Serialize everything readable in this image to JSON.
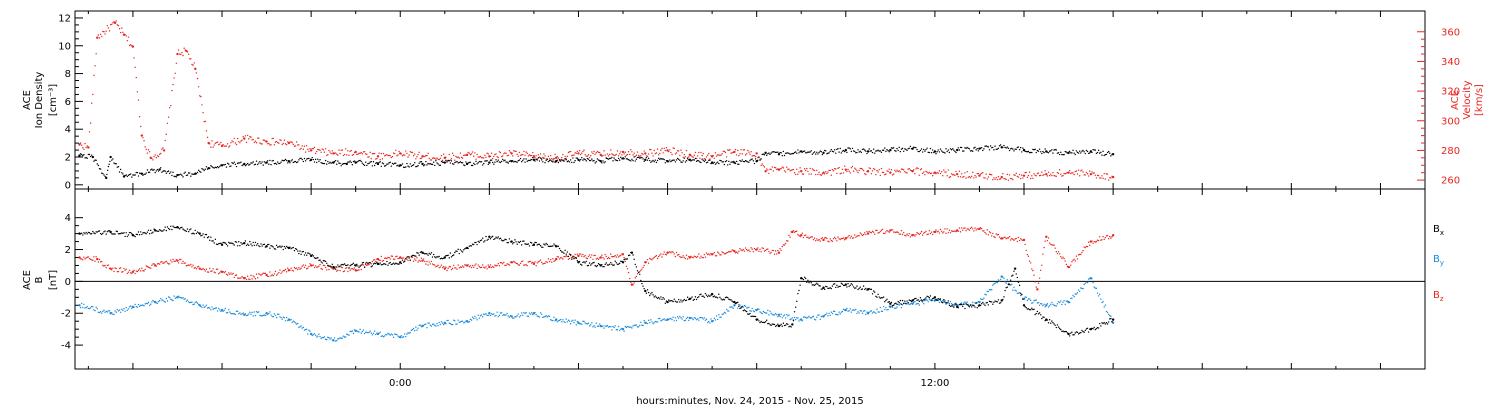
{
  "colors": {
    "black": "#000000",
    "red": "#e8261f",
    "blue": "#1a8ad9"
  },
  "xlabel": "hours:minutes, Nov. 24, 2015 - Nov. 25, 2015",
  "chart_data": [
    {
      "type": "scatter",
      "panel": "top",
      "ylabel_left": [
        "ACE",
        "Ion Density",
        "[cm⁻³]"
      ],
      "ylabel_right": [
        "ACE",
        "Velocity",
        "[km/s]"
      ],
      "xlim_hours": [
        -7.3,
        23.0
      ],
      "ylim_left": [
        -0.3,
        12.5
      ],
      "ylim_right": [
        254,
        374
      ],
      "x_ticks": [
        {
          "value": 0,
          "label": "0:00"
        },
        {
          "value": 12,
          "label": "12:00"
        }
      ],
      "y_ticks_left": [
        0,
        2,
        4,
        6,
        8,
        10,
        12
      ],
      "y_ticks_right": [
        260,
        280,
        300,
        320,
        340,
        360
      ],
      "series": [
        {
          "axis": "left",
          "color": "black",
          "yunit": "cm^-3",
          "x": [
            -7.2,
            -6.9,
            -6.6,
            -6.5,
            -6.2,
            -5.8,
            -5.4,
            -5.0,
            -4.6,
            -4.3,
            -4.0,
            -3.5,
            -3.0,
            -2.5,
            -2.0,
            -1.5,
            -1.2,
            -1.0,
            -0.5,
            0.0,
            0.5,
            1.0,
            1.5,
            2.0,
            2.5,
            3.0,
            3.5,
            4.0,
            4.5,
            5.0,
            5.5,
            6.0,
            6.5,
            7.0,
            7.5,
            8.0,
            8.2,
            8.5,
            9.0,
            9.5,
            10.0,
            10.5,
            11.0,
            11.5,
            12.0,
            12.5,
            13.0,
            13.5,
            14.0,
            14.5,
            15.0,
            15.5,
            16.0
          ],
          "y": [
            2.1,
            2.0,
            0.5,
            2.0,
            0.6,
            0.8,
            1.1,
            0.7,
            0.8,
            1.2,
            1.4,
            1.5,
            1.6,
            1.7,
            1.8,
            1.6,
            1.5,
            1.6,
            1.5,
            1.4,
            1.5,
            1.6,
            1.5,
            1.6,
            1.7,
            1.8,
            1.7,
            1.8,
            1.7,
            1.9,
            1.8,
            1.7,
            1.8,
            1.6,
            1.6,
            1.7,
            2.3,
            2.2,
            2.4,
            2.3,
            2.5,
            2.4,
            2.5,
            2.6,
            2.4,
            2.5,
            2.6,
            2.7,
            2.5,
            2.4,
            2.3,
            2.4,
            2.2
          ]
        },
        {
          "axis": "right",
          "color": "red",
          "yunit": "km/s",
          "x": [
            -7.2,
            -7.0,
            -6.8,
            -6.4,
            -6.2,
            -6.0,
            -5.8,
            -5.6,
            -5.3,
            -5.0,
            -4.8,
            -4.6,
            -4.3,
            -4.0,
            -3.5,
            -3.0,
            -2.5,
            -2.0,
            -1.5,
            -1.0,
            -0.5,
            0.0,
            0.5,
            1.0,
            1.5,
            2.0,
            2.5,
            3.0,
            3.5,
            4.0,
            4.5,
            5.0,
            5.5,
            6.0,
            6.5,
            7.0,
            7.5,
            8.0,
            8.2,
            8.5,
            9.0,
            9.5,
            10.0,
            10.5,
            11.0,
            11.5,
            12.0,
            12.5,
            13.0,
            13.5,
            14.0,
            14.5,
            15.0,
            15.5,
            16.0
          ],
          "y": [
            284,
            282,
            356,
            366,
            358,
            350,
            290,
            275,
            280,
            345,
            347,
            335,
            285,
            283,
            288,
            286,
            285,
            280,
            278,
            279,
            276,
            278,
            276,
            275,
            277,
            276,
            278,
            276,
            275,
            278,
            277,
            279,
            278,
            280,
            277,
            276,
            279,
            278,
            266,
            267,
            266,
            265,
            267,
            266,
            265,
            266,
            265,
            264,
            263,
            262,
            263,
            264,
            265,
            264,
            262
          ]
        }
      ]
    },
    {
      "type": "scatter",
      "panel": "bottom",
      "ylabel_left": [
        "ACE",
        "B",
        "[nT]"
      ],
      "xlim_hours": [
        -7.3,
        23.0
      ],
      "ylim": [
        -5.5,
        5.8
      ],
      "x_ticks": [
        {
          "value": 0,
          "label": "0:00"
        },
        {
          "value": 12,
          "label": "12:00"
        }
      ],
      "y_ticks": [
        -4,
        -2,
        0,
        2,
        4
      ],
      "zero_line": true,
      "series": [
        {
          "name": "B",
          "sub": "x",
          "color": "black",
          "yunit": "nT",
          "x": [
            -7.2,
            -6.5,
            -6.0,
            -5.5,
            -5.0,
            -4.5,
            -4.0,
            -3.5,
            -3.0,
            -2.5,
            -2.0,
            -1.5,
            -1.0,
            -0.5,
            0.0,
            0.5,
            1.0,
            1.5,
            2.0,
            2.5,
            3.0,
            3.5,
            4.0,
            4.5,
            5.0,
            5.2,
            5.5,
            6.0,
            6.5,
            7.0,
            7.5,
            8.0,
            8.5,
            8.8,
            9.0,
            9.5,
            10.0,
            10.5,
            11.0,
            11.5,
            12.0,
            12.5,
            13.0,
            13.5,
            13.8,
            14.0,
            14.5,
            15.0,
            15.5,
            16.0
          ],
          "y": [
            3.0,
            3.1,
            2.9,
            3.2,
            3.4,
            3.0,
            2.3,
            2.4,
            2.2,
            2.1,
            1.6,
            0.9,
            1.0,
            1.1,
            1.2,
            1.8,
            1.5,
            2.1,
            2.8,
            2.5,
            2.3,
            2.2,
            1.2,
            1.0,
            1.2,
            1.8,
            -0.6,
            -1.3,
            -1.1,
            -0.8,
            -1.3,
            -2.4,
            -2.8,
            -2.7,
            0.2,
            -0.4,
            -0.2,
            -0.5,
            -1.4,
            -1.2,
            -1.0,
            -1.6,
            -1.5,
            -1.2,
            0.8,
            -1.5,
            -2.4,
            -3.3,
            -3.0,
            -2.4
          ]
        },
        {
          "name": "B",
          "sub": "y",
          "color": "blue",
          "yunit": "nT",
          "x": [
            -7.2,
            -6.5,
            -6.0,
            -5.5,
            -5.0,
            -4.5,
            -4.0,
            -3.5,
            -3.0,
            -2.5,
            -2.0,
            -1.5,
            -1.0,
            -0.5,
            0.0,
            0.5,
            1.0,
            1.5,
            2.0,
            2.5,
            3.0,
            3.5,
            4.0,
            4.5,
            5.0,
            5.5,
            6.0,
            6.5,
            7.0,
            7.5,
            8.0,
            8.5,
            9.0,
            9.5,
            10.0,
            10.5,
            11.0,
            11.5,
            12.0,
            12.5,
            13.0,
            13.5,
            14.0,
            14.5,
            15.0,
            15.5,
            16.0
          ],
          "y": [
            -1.5,
            -2.0,
            -1.6,
            -1.3,
            -1.0,
            -1.5,
            -1.8,
            -2.1,
            -2.0,
            -2.4,
            -3.3,
            -3.7,
            -3.1,
            -3.3,
            -3.5,
            -2.8,
            -2.6,
            -2.5,
            -2.0,
            -2.2,
            -2.0,
            -2.4,
            -2.6,
            -2.8,
            -3.0,
            -2.6,
            -2.4,
            -2.3,
            -2.5,
            -1.5,
            -1.8,
            -2.1,
            -2.4,
            -2.2,
            -1.8,
            -2.0,
            -1.6,
            -1.4,
            -1.2,
            -1.5,
            -1.3,
            0.3,
            -1.1,
            -1.5,
            -1.3,
            0.2,
            -2.6
          ]
        },
        {
          "name": "B",
          "sub": "z",
          "color": "red",
          "yunit": "nT",
          "x": [
            -7.2,
            -6.8,
            -6.5,
            -6.0,
            -5.5,
            -5.0,
            -4.5,
            -4.0,
            -3.5,
            -3.0,
            -2.5,
            -2.0,
            -1.5,
            -1.0,
            -0.5,
            0.0,
            0.5,
            1.0,
            1.5,
            2.0,
            2.5,
            3.0,
            3.5,
            4.0,
            4.5,
            5.0,
            5.2,
            5.5,
            6.0,
            6.5,
            7.0,
            7.5,
            8.0,
            8.5,
            8.8,
            9.0,
            9.5,
            10.0,
            10.5,
            11.0,
            11.5,
            12.0,
            12.5,
            13.0,
            13.5,
            14.0,
            14.3,
            14.5,
            15.0,
            15.5,
            16.0
          ],
          "y": [
            1.5,
            1.4,
            0.8,
            0.6,
            1.0,
            1.3,
            0.8,
            0.6,
            0.2,
            0.4,
            0.7,
            1.0,
            0.8,
            0.7,
            1.4,
            1.5,
            1.3,
            0.8,
            1.0,
            0.9,
            1.2,
            1.1,
            1.4,
            1.6,
            1.5,
            1.7,
            -0.2,
            1.2,
            1.8,
            1.5,
            1.7,
            1.9,
            2.0,
            1.8,
            3.1,
            2.9,
            2.6,
            2.7,
            3.0,
            3.2,
            2.9,
            3.1,
            3.2,
            3.3,
            2.7,
            2.6,
            -0.5,
            2.8,
            0.9,
            2.5,
            2.9
          ]
        }
      ]
    }
  ]
}
